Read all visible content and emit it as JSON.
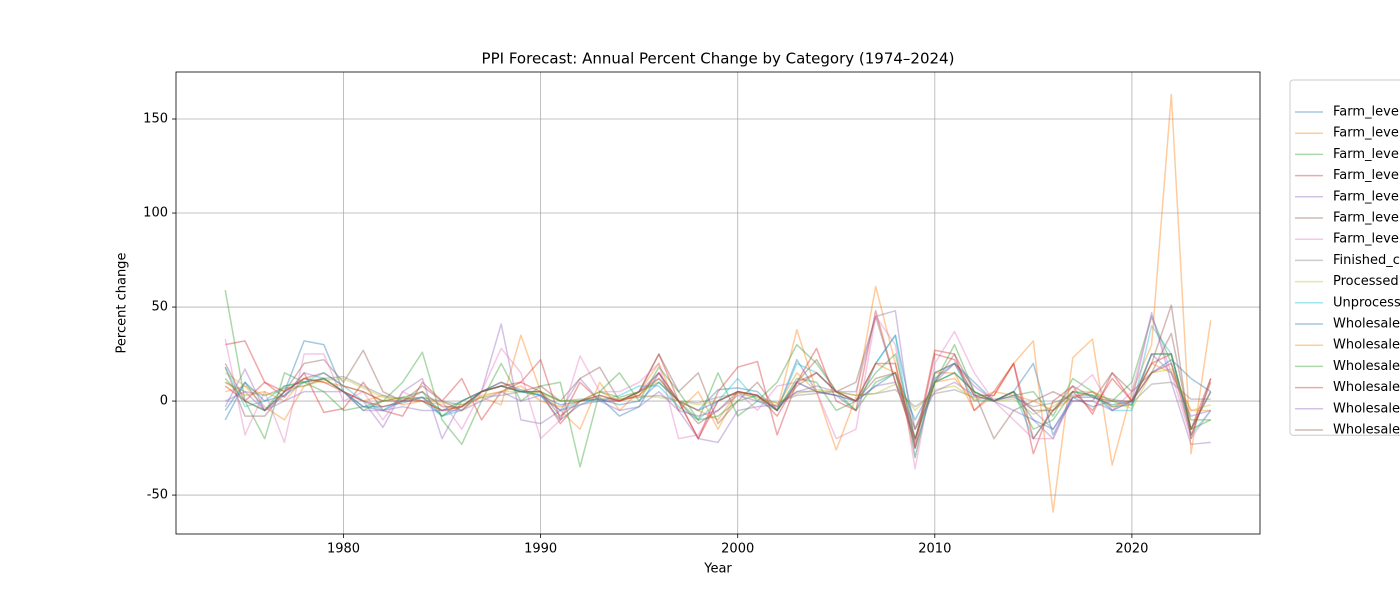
{
  "chart_data": {
    "type": "line",
    "title": "PPI Forecast: Annual Percent Change by Category (1974–2024)",
    "x_label": "Year",
    "y_label": "Percent change",
    "x": [
      1974,
      1975,
      1976,
      1977,
      1978,
      1979,
      1980,
      1981,
      1982,
      1983,
      1984,
      1985,
      1986,
      1987,
      1988,
      1989,
      1990,
      1991,
      1992,
      1993,
      1994,
      1995,
      1996,
      1997,
      1998,
      1999,
      2000,
      2001,
      2002,
      2003,
      2004,
      2005,
      2006,
      2007,
      2008,
      2009,
      2010,
      2011,
      2012,
      2013,
      2014,
      2015,
      2016,
      2017,
      2018,
      2019,
      2020,
      2021,
      2022,
      2023,
      2024
    ],
    "xlim": [
      1971.5,
      2026.5
    ],
    "xticks": [
      1980,
      1990,
      2000,
      2010,
      2020
    ],
    "ylim": [
      -70.7,
      175
    ],
    "yticks": [
      -50,
      0,
      50,
      100,
      150
    ],
    "grid": true,
    "legend": "upper right outside",
    "series": [
      {
        "name": "Farm_leve",
        "color": "#1f77b4",
        "values": [
          -10,
          10,
          -5,
          5,
          32,
          30,
          5,
          -3,
          -5,
          0,
          2,
          -8,
          -3,
          5,
          10,
          6,
          3,
          -10,
          -2,
          2,
          -8,
          -3,
          15,
          0,
          -5,
          6,
          7,
          5,
          -5,
          22,
          5,
          3,
          -5,
          20,
          35,
          -15,
          12,
          20,
          10,
          0,
          5,
          20,
          -18,
          2,
          -3,
          0,
          -2,
          25,
          25,
          -15,
          5
        ]
      },
      {
        "name": "Farm_leve",
        "color": "#ff7f0e",
        "values": [
          5,
          8,
          -3,
          -10,
          8,
          12,
          5,
          0,
          3,
          -2,
          0,
          -5,
          -3,
          2,
          -2,
          35,
          5,
          -5,
          -15,
          10,
          -5,
          5,
          20,
          -5,
          5,
          -15,
          5,
          3,
          -5,
          38,
          5,
          -26,
          2,
          61,
          20,
          -30,
          15,
          15,
          -5,
          3,
          20,
          32,
          -59,
          23,
          33,
          -34,
          5,
          30,
          163,
          -28,
          43
        ]
      },
      {
        "name": "Farm_leve",
        "color": "#2ca02c",
        "values": [
          59,
          0,
          -20,
          15,
          10,
          5,
          -5,
          -3,
          0,
          10,
          26,
          -10,
          -23,
          0,
          20,
          0,
          8,
          10,
          -35,
          5,
          15,
          0,
          18,
          5,
          -10,
          15,
          -8,
          0,
          10,
          30,
          20,
          5,
          -5,
          10,
          15,
          -25,
          10,
          30,
          5,
          0,
          3,
          5,
          -8,
          12,
          5,
          0,
          10,
          45,
          20,
          -10,
          -10
        ]
      },
      {
        "name": "Farm_leve",
        "color": "#d62728",
        "values": [
          30,
          32,
          10,
          2,
          15,
          -6,
          -4,
          10,
          -5,
          -8,
          10,
          0,
          12,
          -10,
          5,
          10,
          22,
          -10,
          10,
          0,
          0,
          5,
          25,
          0,
          -20,
          5,
          18,
          21,
          -18,
          10,
          28,
          0,
          -5,
          48,
          10,
          -22,
          27,
          25,
          -5,
          5,
          20,
          -28,
          0,
          8,
          -7,
          15,
          0,
          20,
          25,
          -15,
          12
        ]
      },
      {
        "name": "Farm_leve",
        "color": "#9467bd",
        "values": [
          -3,
          17,
          -5,
          3,
          15,
          12,
          5,
          0,
          -14,
          5,
          12,
          -20,
          0,
          5,
          41,
          -10,
          -12,
          -5,
          12,
          0,
          0,
          5,
          15,
          -5,
          -20,
          -22,
          -5,
          -3,
          -2,
          5,
          8,
          5,
          5,
          45,
          48,
          -25,
          10,
          20,
          8,
          0,
          -5,
          -10,
          -20,
          2,
          5,
          -5,
          0,
          47,
          10,
          -23,
          -22
        ]
      },
      {
        "name": "Farm_leve",
        "color": "#8c564b",
        "values": [
          18,
          -8,
          -8,
          5,
          20,
          22,
          10,
          27,
          5,
          0,
          8,
          0,
          -5,
          5,
          10,
          5,
          8,
          0,
          12,
          18,
          0,
          5,
          25,
          5,
          15,
          -12,
          0,
          10,
          -5,
          10,
          22,
          5,
          10,
          45,
          10,
          -20,
          10,
          25,
          5,
          -20,
          -5,
          0,
          5,
          0,
          0,
          15,
          5,
          15,
          36,
          -15,
          5
        ]
      },
      {
        "name": "Farm_leve",
        "color": "#e377c2",
        "values": [
          33,
          -18,
          5,
          -22,
          25,
          25,
          0,
          5,
          -10,
          5,
          0,
          0,
          -15,
          5,
          28,
          15,
          -20,
          -10,
          24,
          5,
          5,
          10,
          20,
          -20,
          -18,
          0,
          5,
          -5,
          8,
          10,
          5,
          -20,
          -15,
          45,
          30,
          -36,
          20,
          37,
          15,
          0,
          -10,
          -20,
          -20,
          5,
          14,
          -5,
          5,
          45,
          15,
          -20,
          -5
        ]
      },
      {
        "name": "Finished_c",
        "color": "#7f7f7f",
        "values": [
          10,
          5,
          3,
          7,
          8,
          12,
          13,
          8,
          3,
          1,
          2,
          0,
          -2,
          2,
          3,
          5,
          5,
          0,
          1,
          1,
          1,
          2,
          3,
          0,
          -1,
          2,
          4,
          2,
          -1,
          3,
          4,
          5,
          3,
          4,
          6,
          -3,
          4,
          6,
          2,
          1,
          2,
          -3,
          -1,
          3,
          3,
          1,
          -1,
          9,
          10,
          1,
          1
        ]
      },
      {
        "name": "Processed",
        "color": "#bcbd22",
        "values": [
          15,
          8,
          3,
          6,
          8,
          11,
          12,
          7,
          2,
          1,
          2,
          -1,
          -2,
          2,
          5,
          5,
          4,
          0,
          0,
          1,
          1,
          3,
          2,
          0,
          -2,
          0,
          5,
          1,
          -1,
          4,
          6,
          5,
          3,
          4,
          9,
          -5,
          6,
          8,
          1,
          0,
          1,
          -7,
          -3,
          5,
          5,
          0,
          -4,
          15,
          17,
          -5,
          -2
        ]
      },
      {
        "name": "Unprocess",
        "color": "#17becf",
        "values": [
          18,
          -3,
          0,
          8,
          10,
          15,
          8,
          0,
          -5,
          2,
          0,
          -8,
          -5,
          5,
          8,
          5,
          3,
          -5,
          0,
          0,
          3,
          8,
          8,
          -3,
          -10,
          0,
          12,
          0,
          -5,
          20,
          15,
          5,
          0,
          20,
          35,
          -30,
          15,
          20,
          0,
          0,
          5,
          -20,
          -5,
          5,
          3,
          -5,
          -5,
          40,
          25,
          -18,
          -5
        ]
      },
      {
        "name": "Wholesale",
        "color": "#1f77b4",
        "values": [
          -5,
          10,
          0,
          3,
          10,
          12,
          5,
          -3,
          -3,
          -1,
          2,
          -5,
          0,
          5,
          8,
          5,
          3,
          -2,
          0,
          1,
          -2,
          0,
          10,
          0,
          -5,
          0,
          5,
          3,
          -5,
          10,
          5,
          3,
          0,
          8,
          15,
          -10,
          10,
          15,
          5,
          0,
          5,
          -10,
          -15,
          2,
          2,
          -2,
          0,
          15,
          22,
          12,
          5
        ]
      },
      {
        "name": "Wholesale",
        "color": "#ff7f0e",
        "values": [
          10,
          3,
          5,
          0,
          12,
          10,
          8,
          5,
          0,
          2,
          0,
          -2,
          -5,
          3,
          5,
          8,
          0,
          -3,
          0,
          5,
          0,
          3,
          12,
          0,
          -5,
          -10,
          5,
          3,
          -3,
          15,
          5,
          5,
          0,
          20,
          15,
          -15,
          10,
          12,
          0,
          5,
          3,
          0,
          -5,
          2,
          5,
          -3,
          0,
          20,
          15,
          -5,
          -5
        ]
      },
      {
        "name": "Wholesale",
        "color": "#2ca02c",
        "values": [
          12,
          0,
          -5,
          8,
          10,
          12,
          5,
          -5,
          0,
          2,
          5,
          -8,
          0,
          5,
          8,
          5,
          5,
          0,
          0,
          5,
          2,
          5,
          10,
          0,
          -10,
          -8,
          0,
          3,
          -5,
          12,
          10,
          -5,
          0,
          15,
          25,
          -20,
          10,
          15,
          5,
          0,
          5,
          -15,
          -10,
          5,
          3,
          -3,
          -2,
          25,
          25,
          -15,
          -10
        ]
      },
      {
        "name": "Wholesale",
        "color": "#d62728",
        "values": [
          8,
          0,
          10,
          5,
          12,
          10,
          5,
          0,
          -3,
          0,
          0,
          -5,
          -3,
          5,
          8,
          10,
          5,
          -12,
          0,
          3,
          0,
          3,
          15,
          0,
          -20,
          0,
          5,
          3,
          -8,
          10,
          15,
          5,
          0,
          20,
          20,
          -25,
          25,
          22,
          3,
          3,
          20,
          -20,
          -5,
          5,
          -5,
          12,
          0,
          15,
          20,
          -18,
          10
        ]
      },
      {
        "name": "Wholesale",
        "color": "#9467bd",
        "values": [
          0,
          5,
          -5,
          0,
          5,
          5,
          5,
          -5,
          -5,
          -3,
          -5,
          -5,
          -5,
          0,
          5,
          0,
          3,
          -5,
          -2,
          0,
          -5,
          -3,
          5,
          -5,
          -8,
          -5,
          3,
          0,
          -3,
          5,
          5,
          3,
          0,
          8,
          10,
          -15,
          5,
          10,
          3,
          0,
          3,
          -5,
          -15,
          0,
          0,
          -5,
          0,
          25,
          15,
          -8,
          -5
        ]
      },
      {
        "name": "Wholesale",
        "color": "#8c564b",
        "values": [
          20,
          0,
          -5,
          5,
          12,
          15,
          8,
          5,
          0,
          0,
          5,
          -3,
          -3,
          5,
          8,
          5,
          5,
          -8,
          0,
          3,
          0,
          5,
          12,
          0,
          -12,
          -5,
          5,
          3,
          -5,
          8,
          15,
          5,
          0,
          12,
          15,
          -20,
          15,
          20,
          3,
          0,
          5,
          -5,
          -5,
          8,
          2,
          0,
          0,
          20,
          51,
          -20,
          12
        ]
      }
    ]
  }
}
